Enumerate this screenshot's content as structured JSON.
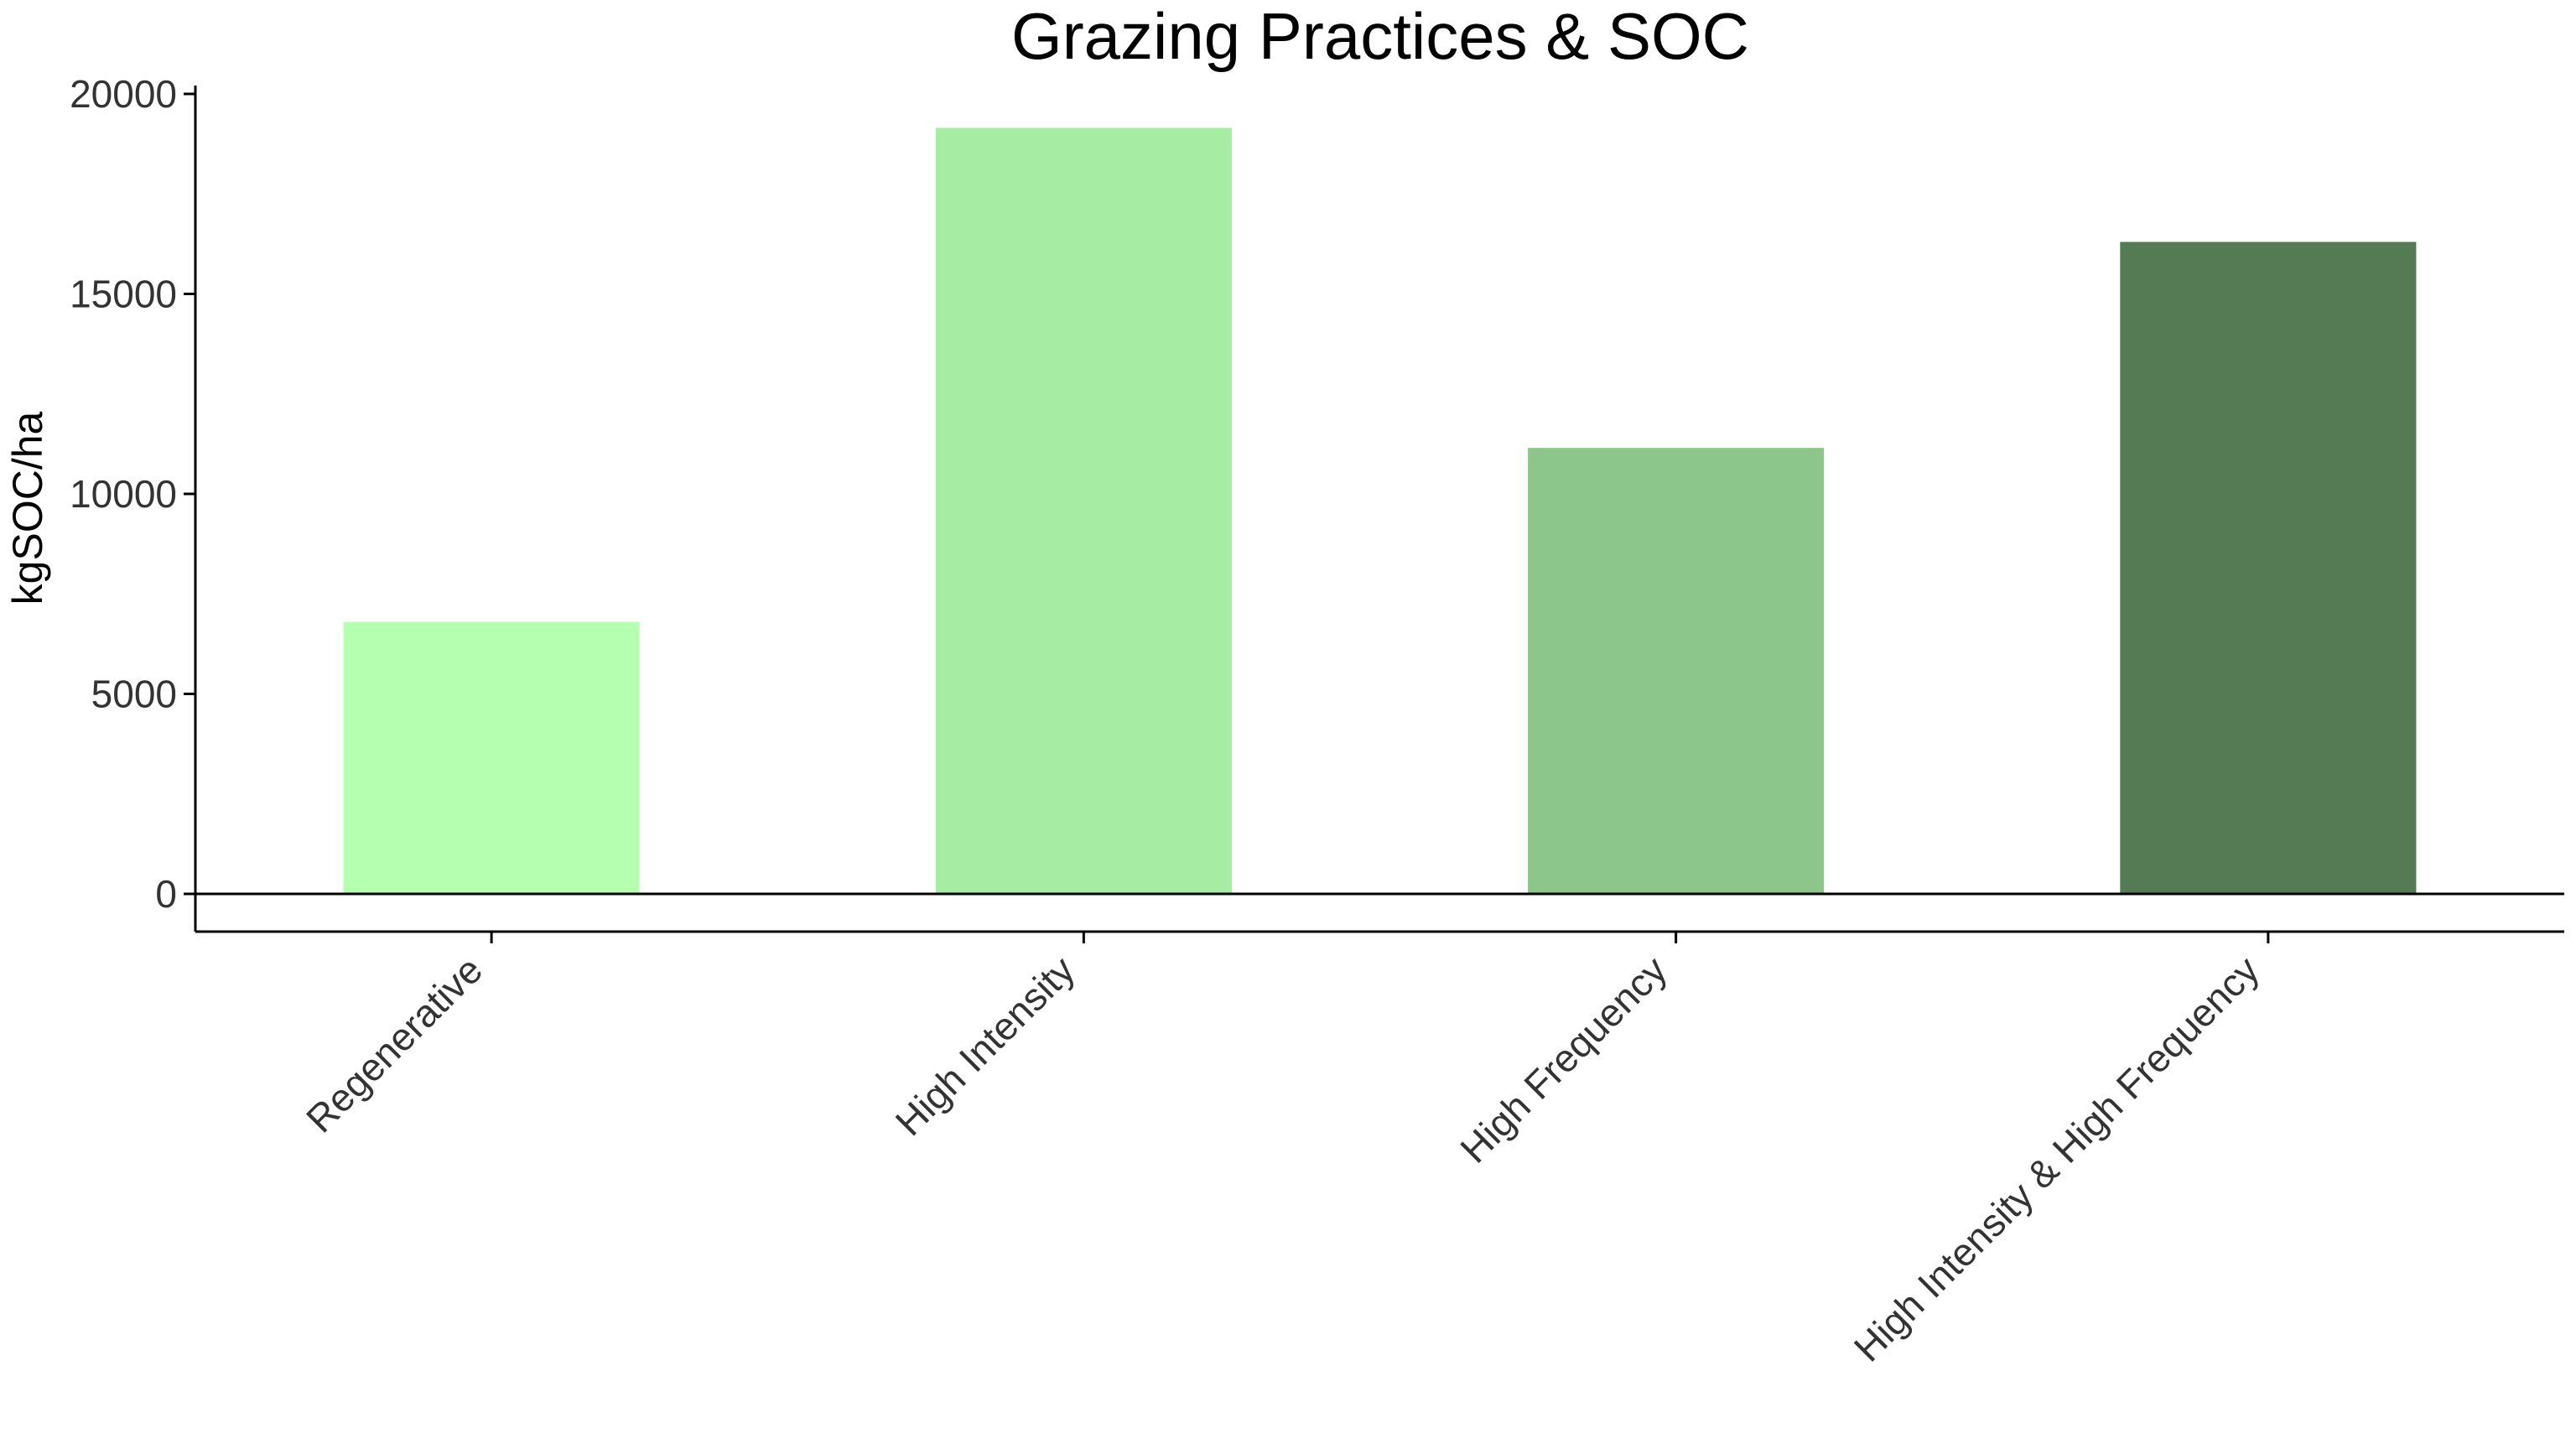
{
  "chart_data": {
    "type": "bar",
    "title": "Grazing Practices & SOC",
    "xlabel": "",
    "ylabel": "kgSOC/ha",
    "categories": [
      "Regenerative",
      "High Intensity",
      "High Frequency",
      "High Intensity & High Frequency"
    ],
    "values": [
      6800,
      19150,
      11150,
      16300
    ],
    "colors": [
      "#b5ffb0",
      "#a7eca3",
      "#8dc68a",
      "#557b55"
    ],
    "ylim": [
      0,
      20000
    ],
    "yticks": [
      0,
      5000,
      10000,
      15000,
      20000
    ],
    "grid": false,
    "legend": "none",
    "zero_line": true
  }
}
